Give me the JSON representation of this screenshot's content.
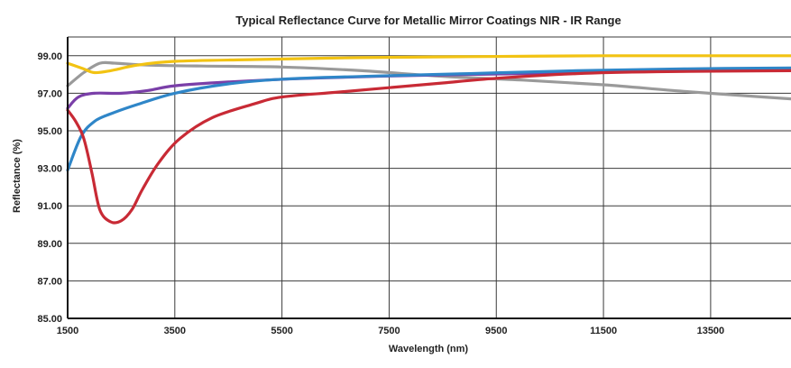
{
  "chart_data": {
    "type": "line",
    "title": "Typical Reflectance Curve for Metallic Mirror Coatings NIR - IR Range",
    "xlabel": "Wavelength (nm)",
    "ylabel": "Reflectance (%)",
    "xlim": [
      1500,
      15000
    ],
    "ylim": [
      85,
      100
    ],
    "x_ticks": [
      1500,
      3500,
      5500,
      7500,
      9500,
      11500,
      13500
    ],
    "x_tick_labels": [
      "1500",
      "3500",
      "5500",
      "7500",
      "9500",
      "11500",
      "13500"
    ],
    "y_ticks": [
      85,
      87,
      89,
      91,
      93,
      95,
      97,
      99
    ],
    "y_tick_labels": [
      "85.00",
      "87.00",
      "89.00",
      "91.00",
      "93.00",
      "95.00",
      "97.00",
      "99.00"
    ],
    "grid": true,
    "series": [
      {
        "color": "#9a9a9a",
        "x": [
          1500,
          1800,
          2100,
          2400,
          3000,
          4000,
          5500,
          7000,
          8500,
          10000,
          11500,
          13000,
          14500,
          15000
        ],
        "y": [
          97.4,
          98.1,
          98.6,
          98.6,
          98.5,
          98.45,
          98.4,
          98.2,
          97.9,
          97.7,
          97.45,
          97.1,
          96.8,
          96.7
        ]
      },
      {
        "color": "#f2c313",
        "x": [
          1500,
          1800,
          2000,
          2300,
          2800,
          3500,
          5000,
          7000,
          9000,
          11500,
          13500,
          15000
        ],
        "y": [
          98.6,
          98.3,
          98.1,
          98.2,
          98.5,
          98.7,
          98.8,
          98.9,
          98.95,
          99.0,
          99.0,
          99.0
        ]
      },
      {
        "color": "#7a3fa8",
        "x": [
          1500,
          1700,
          2000,
          2500,
          3000,
          3500,
          4500,
          6000,
          8000,
          10000,
          12000,
          15000
        ],
        "y": [
          96.2,
          96.8,
          97.0,
          97.0,
          97.15,
          97.4,
          97.6,
          97.8,
          97.95,
          98.05,
          98.15,
          98.25
        ]
      },
      {
        "color": "#2f86c8",
        "x": [
          1500,
          1750,
          2000,
          2300,
          2800,
          3500,
          4500,
          5500,
          7000,
          9000,
          11000,
          13000,
          15000
        ],
        "y": [
          92.9,
          94.7,
          95.5,
          95.9,
          96.4,
          97.0,
          97.5,
          97.75,
          97.9,
          98.05,
          98.2,
          98.3,
          98.35
        ]
      },
      {
        "color": "#c82a35",
        "x": [
          1500,
          1650,
          1800,
          1950,
          2100,
          2300,
          2500,
          2700,
          2900,
          3200,
          3600,
          4200,
          5000,
          5500,
          6500,
          7500,
          8500,
          9500,
          11000,
          12500,
          15000
        ],
        "y": [
          96.1,
          95.5,
          94.6,
          92.8,
          90.8,
          90.15,
          90.2,
          90.8,
          91.9,
          93.3,
          94.6,
          95.7,
          96.45,
          96.8,
          97.05,
          97.3,
          97.55,
          97.8,
          98.05,
          98.15,
          98.2
        ]
      }
    ]
  }
}
